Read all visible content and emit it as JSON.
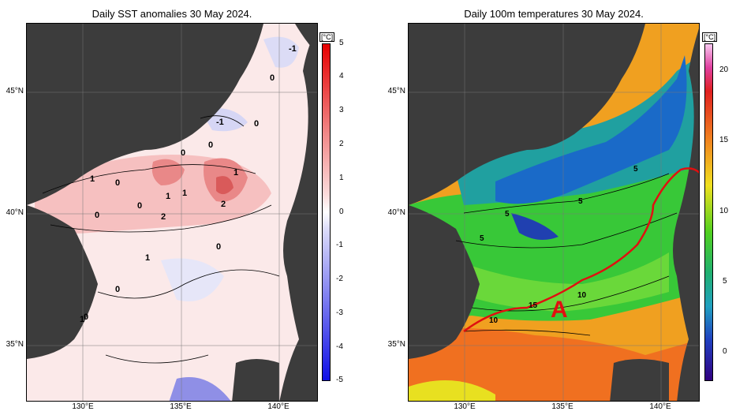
{
  "left_panel": {
    "title": "Daily SST anomalies 30 May 2024.",
    "colorbar": {
      "unit": "[°C]",
      "ticks": [
        "5",
        "4",
        "3",
        "2",
        "1",
        "0",
        "-1",
        "-2",
        "-3",
        "-4",
        "-5"
      ]
    },
    "contour_labels": [
      "-1",
      "0",
      "0",
      "-1",
      "0",
      "0",
      "1",
      "0",
      "1",
      "1",
      "2",
      "0",
      "1",
      "2",
      "0",
      "0",
      "1",
      "0",
      "0",
      "1"
    ]
  },
  "right_panel": {
    "title": "Daily 100m temperatures 30 May 2024.",
    "colorbar": {
      "unit": "[°C]",
      "ticks": [
        "20",
        "15",
        "10",
        "5",
        "0"
      ]
    },
    "contour_labels": [
      "5",
      "5",
      "5",
      "5",
      "10",
      "15",
      "10"
    ],
    "marker_label": "A"
  },
  "axes": {
    "lat_labels": [
      "45°N",
      "40°N",
      "35°N"
    ],
    "lon_labels": [
      "130°E",
      "135°E",
      "140°E"
    ]
  },
  "colors": {
    "land": "#3c3c3c",
    "anomaly_positive": "#e8676a",
    "anomaly_negative": "#5a5ae6",
    "temp_warm": "#e84a10",
    "temp_cold": "#2a1aa0",
    "front_line": "#e01010"
  }
}
